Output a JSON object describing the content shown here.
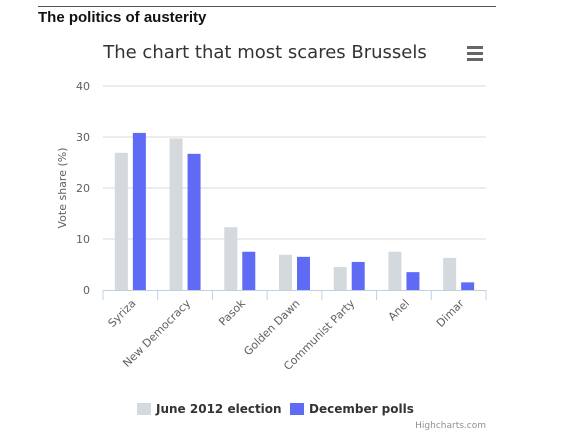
{
  "section": {
    "heading": "The politics of austerity"
  },
  "chart_data": {
    "type": "bar",
    "title": "The chart that most scares Brussels",
    "xlabel": "",
    "ylabel": "Vote share (%)",
    "ylim": [
      0,
      40
    ],
    "yticks": [
      0,
      10,
      20,
      30,
      40
    ],
    "grid": true,
    "legend_position": "bottom",
    "categories": [
      "Syriza",
      "New Democracy",
      "Pasok",
      "Golden Dawn",
      "Communist Party",
      "Anel",
      "Dimar"
    ],
    "series": [
      {
        "name": "June 2012 election",
        "color": "#d3d9dd",
        "values": [
          26.9,
          29.7,
          12.3,
          6.9,
          4.5,
          7.5,
          6.3
        ]
      },
      {
        "name": "December polls",
        "color": "#5f6bf5",
        "values": [
          30.8,
          26.7,
          7.5,
          6.5,
          5.5,
          3.5,
          1.5
        ]
      }
    ],
    "menu_icon": "hamburger-menu-icon",
    "credits": "Highcharts.com"
  }
}
